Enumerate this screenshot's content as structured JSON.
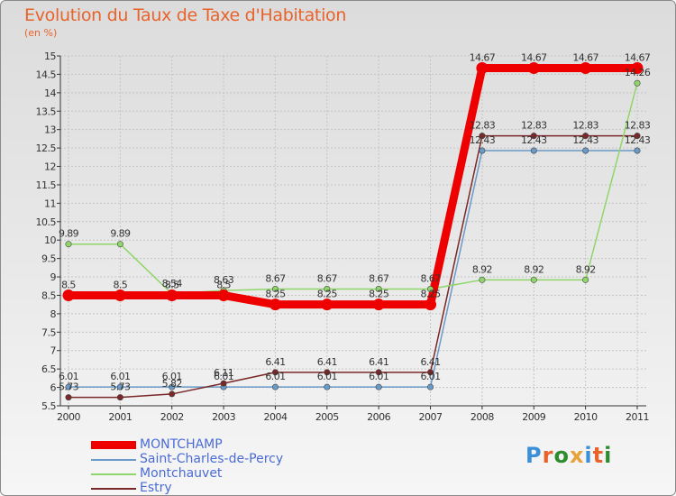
{
  "title": "Evolution du Taux de Taxe d'Habitation",
  "unit_label": "(en %)",
  "logo": {
    "text": "Proxiti",
    "letters": [
      {
        "ch": "P",
        "color": "#3a8fd8"
      },
      {
        "ch": "r",
        "color": "#e8632b"
      },
      {
        "ch": "o",
        "color": "#2e8b2e"
      },
      {
        "ch": "x",
        "color": "#e8a23b"
      },
      {
        "ch": "i",
        "color": "#3a8fd8"
      },
      {
        "ch": "t",
        "color": "#e8632b"
      },
      {
        "ch": "i",
        "color": "#2e8b2e"
      }
    ]
  },
  "chart_data": {
    "type": "line",
    "title": "Evolution du Taux de Taxe d'Habitation",
    "ylabel": "(en %)",
    "x": [
      "2000",
      "2001",
      "2002",
      "2003",
      "2004",
      "2005",
      "2006",
      "2007",
      "2008",
      "2009",
      "2010",
      "2011"
    ],
    "ylim": [
      5.5,
      15
    ],
    "yticks": [
      "5.5",
      "6",
      "6.5",
      "7",
      "7.5",
      "8",
      "8.5",
      "9",
      "9.5",
      "10",
      "10.5",
      "11",
      "11.5",
      "12",
      "12.5",
      "13",
      "13.5",
      "14",
      "14.5",
      "15"
    ],
    "grid": true,
    "legend_position": "bottom-left",
    "series": [
      {
        "name": "MONTCHAMP",
        "color": "#ee0000",
        "width": 9,
        "values": [
          8.5,
          8.5,
          8.5,
          8.5,
          8.25,
          8.25,
          8.25,
          8.25,
          14.67,
          14.67,
          14.67,
          14.67
        ],
        "labels": [
          "8.5",
          "8.5",
          "8.5",
          "8.5",
          "8.25",
          "8.25",
          "8.25",
          "8.25",
          "14.67",
          "14.67",
          "14.67",
          "14.67"
        ]
      },
      {
        "name": "Saint-Charles-de-Percy",
        "color": "#6a9ac8",
        "width": 1.5,
        "values": [
          6.01,
          6.01,
          6.01,
          6.01,
          6.01,
          6.01,
          6.01,
          6.01,
          12.43,
          12.43,
          12.43,
          12.43
        ],
        "labels": [
          "6.01",
          "6.01",
          "6.01",
          "6.01",
          "6.01",
          "6.01",
          "6.01",
          "6.01",
          "12.43",
          "12.43",
          "12.43",
          "12.43"
        ]
      },
      {
        "name": "Montchauvet",
        "color": "#8fd66a",
        "width": 1.5,
        "values": [
          9.89,
          9.89,
          8.54,
          8.63,
          8.67,
          8.67,
          8.67,
          8.67,
          8.92,
          8.92,
          8.92,
          14.26
        ],
        "labels": [
          "9.89",
          "9.89",
          "8.54",
          "8.63",
          "8.67",
          "8.67",
          "8.67",
          "8.67",
          "8.92",
          "8.92",
          "8.92",
          "14.26"
        ]
      },
      {
        "name": "Estry",
        "color": "#7a2828",
        "width": 1.5,
        "values": [
          5.73,
          5.73,
          5.82,
          6.11,
          6.41,
          6.41,
          6.41,
          6.41,
          12.83,
          12.83,
          12.83,
          12.83
        ],
        "labels": [
          "5.73",
          "5.73",
          "5.82",
          "6.11",
          "6.41",
          "6.41",
          "6.41",
          "6.41",
          "12.83",
          "12.83",
          "12.83",
          "12.83"
        ]
      }
    ]
  }
}
